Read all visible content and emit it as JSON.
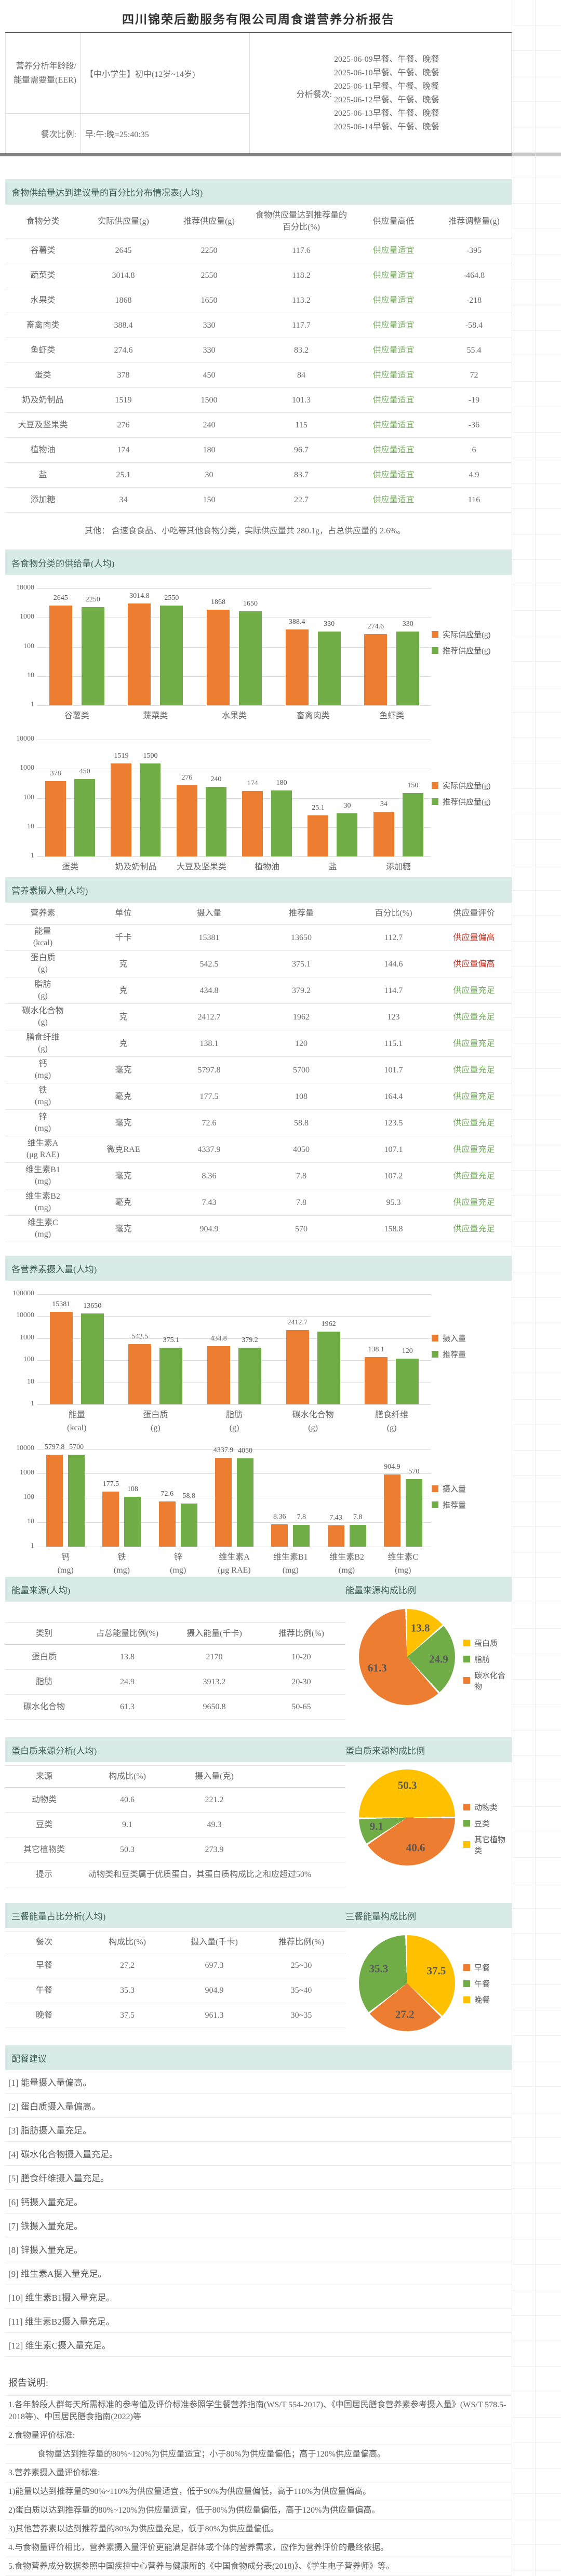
{
  "title": "四川锦荣后勤服务有限公司周食谱营养分析报告",
  "header": {
    "age_label": "营养分析年龄段/能量需要量(EER)",
    "age_value": "【中小学生】初中(12岁~14岁)",
    "meals_label": "分析餐次:",
    "meals": [
      "2025-06-09早餐、午餐、晚餐",
      "2025-06-10早餐、午餐、晚餐",
      "2025-06-11早餐、午餐、晚餐",
      "2025-06-12早餐、午餐、晚餐",
      "2025-06-13早餐、午餐、晚餐",
      "2025-06-14早餐、午餐、晚餐"
    ],
    "ratio_label": "餐次比例:",
    "ratio_value": "早:午:晚=25:40:35"
  },
  "food_table": {
    "title": "食物供给量达到建议量的百分比分布情况表(人均)",
    "columns": [
      "食物分类",
      "实际供应量(g)",
      "推荐供应量(g)",
      "食物供应量达到推荐量的百分比(%)",
      "供应量高低",
      "推荐调整量(g)"
    ],
    "rows": [
      [
        "谷薯类",
        "2645",
        "2250",
        "117.6",
        "供应量适宜",
        "-395"
      ],
      [
        "蔬菜类",
        "3014.8",
        "2550",
        "118.2",
        "供应量适宜",
        "-464.8"
      ],
      [
        "水果类",
        "1868",
        "1650",
        "113.2",
        "供应量适宜",
        "-218"
      ],
      [
        "畜禽肉类",
        "388.4",
        "330",
        "117.7",
        "供应量适宜",
        "-58.4"
      ],
      [
        "鱼虾类",
        "274.6",
        "330",
        "83.2",
        "供应量适宜",
        "55.4"
      ],
      [
        "蛋类",
        "378",
        "450",
        "84",
        "供应量适宜",
        "72"
      ],
      [
        "奶及奶制品",
        "1519",
        "1500",
        "101.3",
        "供应量适宜",
        "-19"
      ],
      [
        "大豆及坚果类",
        "276",
        "240",
        "115",
        "供应量适宜",
        "-36"
      ],
      [
        "植物油",
        "174",
        "180",
        "96.7",
        "供应量适宜",
        "6"
      ],
      [
        "盐",
        "25.1",
        "30",
        "83.7",
        "供应量适宜",
        "4.9"
      ],
      [
        "添加糖",
        "34",
        "150",
        "22.7",
        "供应量适宜",
        "116"
      ]
    ],
    "note": "其他：  含速食食品、小吃等其他食物分类，实际供应量共 280.1g，占总供应量的 2.6%。"
  },
  "food_charts": {
    "title": "各食物分类的供给量(人均)"
  },
  "nutrient_table": {
    "title": "营养素摄入量(人均)",
    "columns": [
      "营养素",
      "单位",
      "摄入量",
      "推荐量",
      "百分比(%)",
      "供应量评价"
    ],
    "rows": [
      [
        "能量",
        "(kcal)",
        "千卡",
        "15381",
        "13650",
        "112.7",
        "供应量偏高"
      ],
      [
        "蛋白质",
        "(g)",
        "克",
        "542.5",
        "375.1",
        "144.6",
        "供应量偏高"
      ],
      [
        "脂肪",
        "(g)",
        "克",
        "434.8",
        "379.2",
        "114.7",
        "供应量充足"
      ],
      [
        "碳水化合物",
        "(g)",
        "克",
        "2412.7",
        "1962",
        "123",
        "供应量充足"
      ],
      [
        "膳食纤维",
        "(g)",
        "克",
        "138.1",
        "120",
        "115.1",
        "供应量充足"
      ],
      [
        "钙",
        "(mg)",
        "毫克",
        "5797.8",
        "5700",
        "101.7",
        "供应量充足"
      ],
      [
        "铁",
        "(mg)",
        "毫克",
        "177.5",
        "108",
        "164.4",
        "供应量充足"
      ],
      [
        "锌",
        "(mg)",
        "毫克",
        "72.6",
        "58.8",
        "123.5",
        "供应量充足"
      ],
      [
        "维生素A",
        "(μg RAE)",
        "微克RAE",
        "4337.9",
        "4050",
        "107.1",
        "供应量充足"
      ],
      [
        "维生素B1",
        "(mg)",
        "毫克",
        "8.36",
        "7.8",
        "107.2",
        "供应量充足"
      ],
      [
        "维生素B2",
        "(mg)",
        "毫克",
        "7.43",
        "7.8",
        "95.3",
        "供应量充足"
      ],
      [
        "维生素C",
        "(mg)",
        "毫克",
        "904.9",
        "570",
        "158.8",
        "供应量充足"
      ]
    ]
  },
  "nutrient_charts": {
    "title": "各营养素摄入量(人均)"
  },
  "energy": {
    "title": "能量来源(人均)",
    "chart_title": "能量来源构成比例",
    "columns": [
      "类别",
      "占总能量比例(%)",
      "摄入能量(千卡)",
      "推荐比例(%)"
    ],
    "rows": [
      [
        "蛋白质",
        "13.8",
        "2170",
        "10-20"
      ],
      [
        "脂肪",
        "24.9",
        "3913.2",
        "20-30"
      ],
      [
        "碳水化合物",
        "61.3",
        "9650.8",
        "50-65"
      ]
    ]
  },
  "protein": {
    "title": "蛋白质来源分析(人均)",
    "chart_title": "蛋白质来源构成比例",
    "columns": [
      "来源",
      "构成比(%)",
      "摄入量(克)"
    ],
    "rows": [
      [
        "动物类",
        "40.6",
        "221.2"
      ],
      [
        "豆类",
        "9.1",
        "49.3"
      ],
      [
        "其它植物类",
        "50.3",
        "273.9"
      ]
    ],
    "tip_label": "提示",
    "tip": "动物类和豆类属于优质蛋白，其蛋白质构成比之和应超过50%"
  },
  "meals": {
    "title": "三餐能量占比分析(人均)",
    "chart_title": "三餐能量构成比例",
    "columns": [
      "餐次",
      "构成比(%)",
      "摄入量(千卡)",
      "推荐比例(%)"
    ],
    "rows": [
      [
        "早餐",
        "27.2",
        "697.3",
        "25~30"
      ],
      [
        "午餐",
        "35.3",
        "904.9",
        "35~40"
      ],
      [
        "晚餐",
        "37.5",
        "961.3",
        "30~35"
      ]
    ]
  },
  "suggestions": {
    "title": "配餐建议",
    "items": [
      "[1] 能量摄入量偏高。",
      "[2] 蛋白质摄入量偏高。",
      "[3] 脂肪摄入量充足。",
      "[4] 碳水化合物摄入量充足。",
      "[5] 膳食纤维摄入量充足。",
      "[6] 钙摄入量充足。",
      "[7] 铁摄入量充足。",
      "[8] 锌摄入量充足。",
      "[9] 维生素A摄入量充足。",
      "[10] 维生素B1摄入量充足。",
      "[11] 维生素B2摄入量充足。",
      "[12] 维生素C摄入量充足。"
    ]
  },
  "notes": {
    "title": "报告说明:",
    "items": [
      {
        "text": "1.各年龄段人群每天所需标准的参考值及评价标准参照学生餐营养指南(WS/T 554-2017)、《中国居民膳食营养素参考摄入量》(WS/T 578.5-2018等)、中国居民膳食指南(2022)等",
        "ind": false
      },
      {
        "text": "2.食物量评价标准:",
        "ind": false
      },
      {
        "text": "食物量达到推荐量的80%~120%为供应量适宜；小于80%为供应量偏低；高于120%供应量偏高。",
        "ind": true
      },
      {
        "text": "3.营养素摄入量评价标准:",
        "ind": false
      },
      {
        "text": "1)能量以达到推荐量的90%~110%为供应量适宜，低于90%为供应量偏低，高于110%为供应量偏高。",
        "ind": false
      },
      {
        "text": "2)蛋白质以达到推荐量的80%~120%为供应量适宜，低于80%为供应量偏低，高于120%为供应量偏高。",
        "ind": false
      },
      {
        "text": "3)其他营养素以达到推荐量的80%为供应量充足，低于80%为供应量偏低。",
        "ind": false
      },
      {
        "text": "4.与食物量评价相比，营养素摄入量评价更能满足群体或个体的营养需求，应作为营养评价的最终依据。",
        "ind": false
      },
      {
        "text": "5.食物营养成分数据参照中国疾控中心营养与健康所的《中国食物成分表(2018)》、《学生电子营养师》等。",
        "ind": false
      }
    ]
  },
  "chart_data": [
    {
      "id": "food-supply-1",
      "type": "bar",
      "yscale": "log",
      "ylim": [
        1,
        10000
      ],
      "yticks": [
        1,
        10,
        100,
        1000,
        10000
      ],
      "grid": true,
      "legend_position": "right",
      "categories": [
        "谷薯类",
        "蔬菜类",
        "水果类",
        "畜禽肉类",
        "鱼虾类"
      ],
      "series": [
        {
          "name": "实际供应量(g)",
          "color": "#ed7d31",
          "values": [
            2645,
            3014.8,
            1868,
            388.4,
            274.6
          ]
        },
        {
          "name": "推荐供应量(g)",
          "color": "#70ad47",
          "values": [
            2250,
            2550,
            1650,
            330,
            330
          ]
        }
      ]
    },
    {
      "id": "food-supply-2",
      "type": "bar",
      "yscale": "log",
      "ylim": [
        1,
        10000
      ],
      "yticks": [
        1,
        10,
        100,
        1000,
        10000
      ],
      "grid": true,
      "legend_position": "right",
      "categories": [
        "蛋类",
        "奶及奶制品",
        "大豆及坚果类",
        "植物油",
        "盐",
        "添加糖"
      ],
      "series": [
        {
          "name": "实际供应量(g)",
          "color": "#ed7d31",
          "values": [
            378,
            1519,
            276,
            174,
            25.1,
            34
          ]
        },
        {
          "name": "推荐供应量(g)",
          "color": "#70ad47",
          "values": [
            450,
            1500,
            240,
            180,
            30,
            150
          ]
        }
      ]
    },
    {
      "id": "nutrient-1",
      "type": "bar",
      "yscale": "log",
      "ylim": [
        1,
        100000
      ],
      "yticks": [
        1,
        10,
        100,
        1000,
        10000,
        100000
      ],
      "grid": true,
      "legend_position": "right",
      "categories": [
        [
          "能量",
          "(kcal)"
        ],
        [
          "蛋白质",
          "(g)"
        ],
        [
          "脂肪",
          "(g)"
        ],
        [
          "碳水化合物",
          "(g)"
        ],
        [
          "膳食纤维",
          "(g)"
        ]
      ],
      "series": [
        {
          "name": "摄入量",
          "color": "#ed7d31",
          "values": [
            15381,
            542.5,
            434.8,
            2412.7,
            138.1
          ]
        },
        {
          "name": "推荐量",
          "color": "#70ad47",
          "values": [
            13650,
            375.1,
            379.2,
            1962,
            120
          ]
        }
      ]
    },
    {
      "id": "nutrient-2",
      "type": "bar",
      "yscale": "log",
      "ylim": [
        1,
        10000
      ],
      "yticks": [
        1,
        10,
        100,
        1000,
        10000
      ],
      "grid": true,
      "legend_position": "right",
      "categories": [
        [
          "钙",
          "(mg)"
        ],
        [
          "铁",
          "(mg)"
        ],
        [
          "锌",
          "(mg)"
        ],
        [
          "维生素A",
          "(μg RAE)"
        ],
        [
          "维生素B1",
          "(mg)"
        ],
        [
          "维生素B2",
          "(mg)"
        ],
        [
          "维生素C",
          "(mg)"
        ]
      ],
      "series": [
        {
          "name": "摄入量",
          "color": "#ed7d31",
          "values": [
            5797.8,
            177.5,
            72.6,
            4337.9,
            8.36,
            7.43,
            904.9
          ]
        },
        {
          "name": "推荐量",
          "color": "#70ad47",
          "values": [
            5700,
            108,
            58.8,
            4050,
            7.8,
            7.8,
            570
          ]
        }
      ]
    },
    {
      "id": "energy-pie",
      "type": "pie",
      "title": "能量来源构成比例",
      "start_angle": 0,
      "slices": [
        {
          "label": "蛋白质",
          "value": 13.8,
          "color": "#ffc000"
        },
        {
          "label": "脂肪",
          "value": 24.9,
          "color": "#70ad47"
        },
        {
          "label": "碳水化合物",
          "value": 61.3,
          "color": "#ed7d31"
        }
      ],
      "legend": [
        {
          "label": "蛋白质",
          "color": "#ffc000"
        },
        {
          "label": "脂肪",
          "color": "#70ad47"
        },
        {
          "label": "碳水化合物",
          "color": "#ed7d31"
        }
      ]
    },
    {
      "id": "protein-pie",
      "type": "pie",
      "title": "蛋白质来源构成比例",
      "start_angle": 270,
      "slices": [
        {
          "label": "其它植物类",
          "value": 50.3,
          "color": "#ffc000"
        },
        {
          "label": "动物类",
          "value": 40.6,
          "color": "#ed7d31"
        },
        {
          "label": "豆类",
          "value": 9.1,
          "color": "#70ad47"
        }
      ],
      "legend": [
        {
          "label": "动物类",
          "color": "#ed7d31"
        },
        {
          "label": "豆类",
          "color": "#70ad47"
        },
        {
          "label": "其它植物类",
          "color": "#ffc000"
        }
      ]
    },
    {
      "id": "meals-pie",
      "type": "pie",
      "title": "三餐能量构成比例",
      "start_angle": 0,
      "slices": [
        {
          "label": "晚餐",
          "value": 37.5,
          "color": "#ffc000"
        },
        {
          "label": "早餐",
          "value": 27.2,
          "color": "#ed7d31"
        },
        {
          "label": "午餐",
          "value": 35.3,
          "color": "#70ad47"
        }
      ],
      "legend": [
        {
          "label": "早餐",
          "color": "#ed7d31"
        },
        {
          "label": "午餐",
          "color": "#70ad47"
        },
        {
          "label": "晚餐",
          "color": "#ffc000"
        }
      ]
    }
  ]
}
